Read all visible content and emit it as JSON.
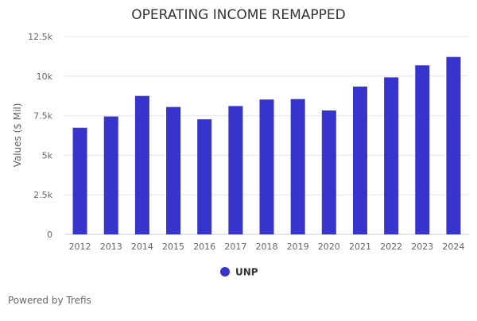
{
  "chart_data": {
    "type": "bar",
    "title": "OPERATING INCOME REMAPPED",
    "xlabel": "",
    "ylabel": "Values ($ Mil)",
    "categories": [
      "2012",
      "2013",
      "2014",
      "2015",
      "2016",
      "2017",
      "2018",
      "2019",
      "2020",
      "2021",
      "2022",
      "2023",
      "2024"
    ],
    "series": [
      {
        "name": "UNP",
        "color": "#3634cc",
        "values": [
          6740,
          7450,
          8750,
          8050,
          7270,
          8110,
          8520,
          8550,
          7830,
          9340,
          9920,
          10680,
          11210
        ]
      }
    ],
    "ylim": [
      0,
      12500
    ],
    "yticks": [
      0,
      2500,
      5000,
      7500,
      10000,
      12500
    ],
    "ytick_labels": [
      "0",
      "2.5k",
      "5k",
      "7.5k",
      "10k",
      "12.5k"
    ],
    "grid": true,
    "legend_position": "bottom-center"
  },
  "credits": "Powered by Trefis"
}
